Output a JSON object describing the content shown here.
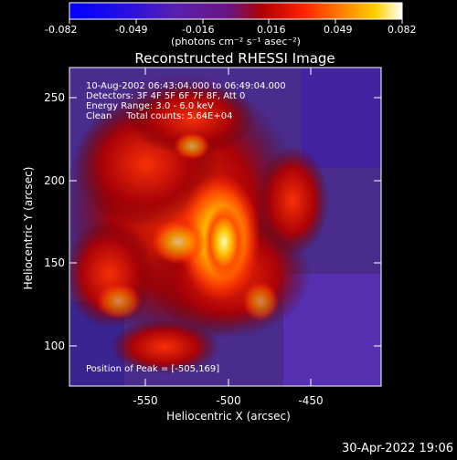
{
  "colorbar": {
    "ticks": [
      "-0.082",
      "-0.049",
      "-0.016",
      "0.016",
      "0.049",
      "0.082"
    ],
    "unit_label": "(photons cm⁻² s⁻¹ asec⁻²)"
  },
  "plot": {
    "title": "Reconstructed RHESSI Image",
    "info_lines": [
      "10-Aug-2002 06:43:04.000 to 06:49:04.000",
      "Detectors: 3F 4F 5F 6F 7F 8F, Att 0",
      "Energy Range: 3.0 - 6.0 keV",
      "Clean     Total counts: 5.64E+04"
    ],
    "peak_text": "Position of Peak = [-505,169]",
    "xlabel": "Heliocentric X (arcsec)",
    "ylabel": "Heliocentric Y (arcsec)",
    "xticks": [
      "-550",
      "-500",
      "-450"
    ],
    "yticks": [
      "100",
      "150",
      "200",
      "250"
    ]
  },
  "footer": {
    "timestamp": "30-Apr-2022 19:06"
  },
  "colors": {
    "background": "#000000",
    "foreground": "#ffffff"
  }
}
